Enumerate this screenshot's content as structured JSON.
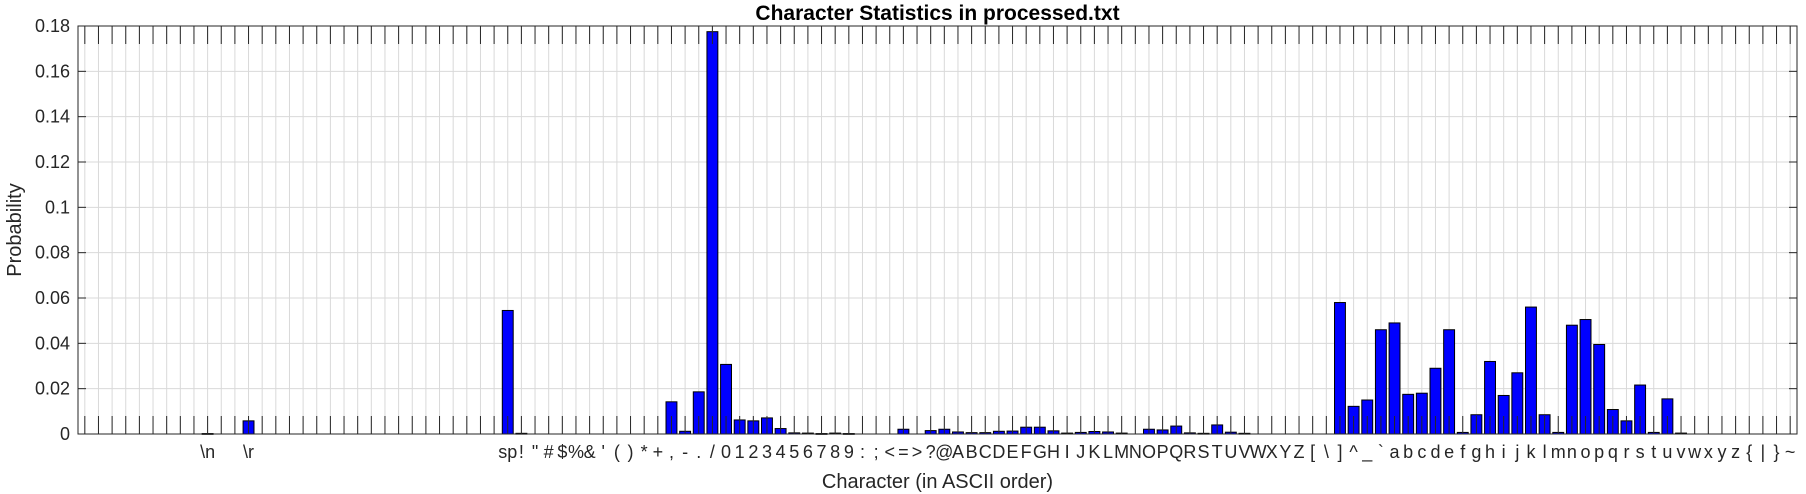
{
  "chart_data": {
    "type": "bar",
    "title": "Character Statistics in processed.txt",
    "xlabel": "Character (in ASCII order)",
    "ylabel": "Probability",
    "ylim": [
      0,
      0.18
    ],
    "yticks": [
      0,
      0.02,
      0.04,
      0.06,
      0.08,
      0.1,
      0.12,
      0.14,
      0.16,
      0.18
    ],
    "ytick_labels": [
      "0",
      "0.02",
      "0.04",
      "0.06",
      "0.08",
      "0.1",
      "0.12",
      "0.14",
      "0.16",
      "0.18"
    ],
    "grid": true,
    "bar_color": "#0000ff",
    "edge_color": "#000000",
    "codes": [
      1,
      2,
      3,
      4,
      5,
      6,
      7,
      8,
      9,
      10,
      11,
      12,
      13,
      14,
      15,
      16,
      17,
      18,
      19,
      20,
      21,
      22,
      23,
      24,
      25,
      26,
      27,
      28,
      29,
      30,
      31,
      32,
      33,
      34,
      35,
      36,
      37,
      38,
      39,
      40,
      41,
      42,
      43,
      44,
      45,
      46,
      47,
      48,
      49,
      50,
      51,
      52,
      53,
      54,
      55,
      56,
      57,
      58,
      59,
      60,
      61,
      62,
      63,
      64,
      65,
      66,
      67,
      68,
      69,
      70,
      71,
      72,
      73,
      74,
      75,
      76,
      77,
      78,
      79,
      80,
      81,
      82,
      83,
      84,
      85,
      86,
      87,
      88,
      89,
      90,
      91,
      92,
      93,
      94,
      95,
      96,
      97,
      98,
      99,
      100,
      101,
      102,
      103,
      104,
      105,
      106,
      107,
      108,
      109,
      110,
      111,
      112,
      113,
      114,
      115,
      116,
      117,
      118,
      119,
      120,
      121,
      122,
      123,
      124,
      125,
      126
    ],
    "values": [
      0,
      0,
      0,
      0,
      0,
      0,
      0,
      0,
      0,
      0.0002,
      0,
      0,
      0.0058,
      0,
      0,
      0,
      0,
      0,
      0,
      0,
      0,
      0,
      0,
      0,
      0,
      0,
      0,
      0,
      0,
      0,
      0,
      0.0545,
      0.0003,
      0,
      0,
      0,
      0,
      0,
      0,
      0,
      0,
      0,
      0,
      0.0142,
      0.0012,
      0.0186,
      0.1775,
      0.0307,
      0.0062,
      0.0058,
      0.0071,
      0.0024,
      0.0005,
      0.0004,
      0.0002,
      0.0004,
      0.0002,
      0,
      0,
      0,
      0.0021,
      0,
      0.0015,
      0.0021,
      0.0009,
      0.0006,
      0.0006,
      0.0012,
      0.0013,
      0.003,
      0.003,
      0.0014,
      0.0004,
      0.0007,
      0.0011,
      0.0009,
      0.0004,
      0,
      0.0021,
      0.0018,
      0.0035,
      0.0005,
      0.0003,
      0.004,
      0.0008,
      0.0003,
      0,
      0,
      0,
      0,
      0,
      0,
      0.058,
      0.0122,
      0.015,
      0.046,
      0.049,
      0.0175,
      0.018,
      0.029,
      0.046,
      0.0007,
      0.0085,
      0.032,
      0.017,
      0.027,
      0.056,
      0.0085,
      0.0007,
      0.048,
      0.0505,
      0.0395,
      0.0108,
      0.0058,
      0.0216,
      0.0007,
      0.0155,
      0.0004,
      0,
      0,
      0,
      0
    ],
    "category_labels": [
      {
        "code": 10,
        "text": "\\n"
      },
      {
        "code": 13,
        "text": "\\r"
      },
      {
        "code": 32,
        "text": "sp"
      },
      {
        "code": 33,
        "text": "!"
      },
      {
        "code": 34,
        "text": "\""
      },
      {
        "code": 35,
        "text": "#"
      },
      {
        "code": 36,
        "text": "$"
      },
      {
        "code": 37,
        "text": "%"
      },
      {
        "code": 38,
        "text": "&"
      },
      {
        "code": 39,
        "text": "'"
      },
      {
        "code": 40,
        "text": "("
      },
      {
        "code": 41,
        "text": ")"
      },
      {
        "code": 42,
        "text": "*"
      },
      {
        "code": 43,
        "text": "+"
      },
      {
        "code": 44,
        "text": ","
      },
      {
        "code": 45,
        "text": "-"
      },
      {
        "code": 46,
        "text": "."
      },
      {
        "code": 47,
        "text": "/"
      },
      {
        "code": 48,
        "text": "0"
      },
      {
        "code": 49,
        "text": "1"
      },
      {
        "code": 50,
        "text": "2"
      },
      {
        "code": 51,
        "text": "3"
      },
      {
        "code": 52,
        "text": "4"
      },
      {
        "code": 53,
        "text": "5"
      },
      {
        "code": 54,
        "text": "6"
      },
      {
        "code": 55,
        "text": "7"
      },
      {
        "code": 56,
        "text": "8"
      },
      {
        "code": 57,
        "text": "9"
      },
      {
        "code": 58,
        "text": ":"
      },
      {
        "code": 59,
        "text": ";"
      },
      {
        "code": 60,
        "text": "<"
      },
      {
        "code": 61,
        "text": "="
      },
      {
        "code": 62,
        "text": ">"
      },
      {
        "code": 63,
        "text": "?"
      },
      {
        "code": 64,
        "text": "@"
      },
      {
        "code": 65,
        "text": "A"
      },
      {
        "code": 66,
        "text": "B"
      },
      {
        "code": 67,
        "text": "C"
      },
      {
        "code": 68,
        "text": "D"
      },
      {
        "code": 69,
        "text": "E"
      },
      {
        "code": 70,
        "text": "F"
      },
      {
        "code": 71,
        "text": "G"
      },
      {
        "code": 72,
        "text": "H"
      },
      {
        "code": 73,
        "text": "I"
      },
      {
        "code": 74,
        "text": "J"
      },
      {
        "code": 75,
        "text": "K"
      },
      {
        "code": 76,
        "text": "L"
      },
      {
        "code": 77,
        "text": "M"
      },
      {
        "code": 78,
        "text": "N"
      },
      {
        "code": 79,
        "text": "O"
      },
      {
        "code": 80,
        "text": "P"
      },
      {
        "code": 81,
        "text": "Q"
      },
      {
        "code": 82,
        "text": "R"
      },
      {
        "code": 83,
        "text": "S"
      },
      {
        "code": 84,
        "text": "T"
      },
      {
        "code": 85,
        "text": "U"
      },
      {
        "code": 86,
        "text": "V"
      },
      {
        "code": 87,
        "text": "W"
      },
      {
        "code": 88,
        "text": "X"
      },
      {
        "code": 89,
        "text": "Y"
      },
      {
        "code": 90,
        "text": "Z"
      },
      {
        "code": 91,
        "text": "["
      },
      {
        "code": 92,
        "text": "\\"
      },
      {
        "code": 93,
        "text": "]"
      },
      {
        "code": 94,
        "text": "^"
      },
      {
        "code": 95,
        "text": "_"
      },
      {
        "code": 96,
        "text": "`"
      },
      {
        "code": 97,
        "text": "a"
      },
      {
        "code": 98,
        "text": "b"
      },
      {
        "code": 99,
        "text": "c"
      },
      {
        "code": 100,
        "text": "d"
      },
      {
        "code": 101,
        "text": "e"
      },
      {
        "code": 102,
        "text": "f"
      },
      {
        "code": 103,
        "text": "g"
      },
      {
        "code": 104,
        "text": "h"
      },
      {
        "code": 105,
        "text": "i"
      },
      {
        "code": 106,
        "text": "j"
      },
      {
        "code": 107,
        "text": "k"
      },
      {
        "code": 108,
        "text": "l"
      },
      {
        "code": 109,
        "text": "m"
      },
      {
        "code": 110,
        "text": "n"
      },
      {
        "code": 111,
        "text": "o"
      },
      {
        "code": 112,
        "text": "p"
      },
      {
        "code": 113,
        "text": "q"
      },
      {
        "code": 114,
        "text": "r"
      },
      {
        "code": 115,
        "text": "s"
      },
      {
        "code": 116,
        "text": "t"
      },
      {
        "code": 117,
        "text": "u"
      },
      {
        "code": 118,
        "text": "v"
      },
      {
        "code": 119,
        "text": "w"
      },
      {
        "code": 120,
        "text": "x"
      },
      {
        "code": 121,
        "text": "y"
      },
      {
        "code": 122,
        "text": "z"
      },
      {
        "code": 123,
        "text": "{"
      },
      {
        "code": 124,
        "text": "|"
      },
      {
        "code": 125,
        "text": "}"
      },
      {
        "code": 126,
        "text": "~"
      }
    ]
  }
}
